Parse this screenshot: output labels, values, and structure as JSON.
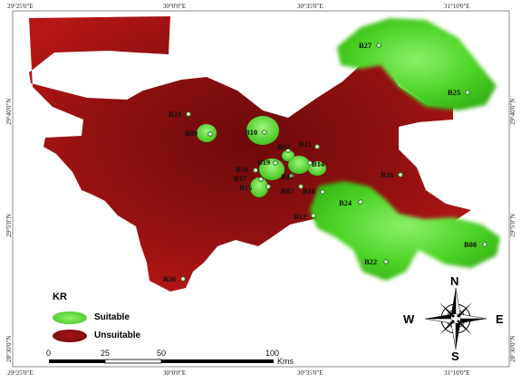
{
  "map": {
    "top_ticks": [
      "29°25'0\"E",
      "30°0'0\"E",
      "30°35'0\"E",
      "31°10'0\"E"
    ],
    "bottom_ticks": [
      "29°25'0\"E",
      "30°0'0\"E",
      "30°35'0\"E",
      "31°10'0\"E"
    ],
    "left_ticks": [
      "29°40'0\"N",
      "29°5'0\"N",
      "28°30'0\"N"
    ],
    "right_ticks": [
      "29°40'0\"N",
      "29°5'0\"N",
      "28°30'0\"N"
    ],
    "colors": {
      "suitable": "#4bd321",
      "unsuitable": "#9b1010",
      "unsuitable_dark": "#6e0a0a"
    },
    "boreholes": [
      {
        "label": "B27"
      },
      {
        "label": "B25"
      },
      {
        "label": "B23"
      },
      {
        "label": "B09"
      },
      {
        "label": "B10"
      },
      {
        "label": "B02"
      },
      {
        "label": "B21"
      },
      {
        "label": "B19"
      },
      {
        "label": "B14"
      },
      {
        "label": "B16"
      },
      {
        "label": "B17"
      },
      {
        "label": "B15"
      },
      {
        "label": "B13"
      },
      {
        "label": "B07"
      },
      {
        "label": "B18"
      },
      {
        "label": "B20"
      },
      {
        "label": "B24"
      },
      {
        "label": "B12"
      },
      {
        "label": "B08"
      },
      {
        "label": "B22"
      },
      {
        "label": "B26"
      }
    ]
  },
  "legend": {
    "title": "KR",
    "items": [
      {
        "label": "Suitable",
        "color": "#4bd321"
      },
      {
        "label": "Unsuitable",
        "color": "#8a0d0d"
      }
    ]
  },
  "scale": {
    "ticks": [
      "0",
      "25",
      "50",
      "100"
    ],
    "unit": "Kms"
  },
  "compass": {
    "n": "N",
    "s": "S",
    "e": "E",
    "w": "W"
  }
}
